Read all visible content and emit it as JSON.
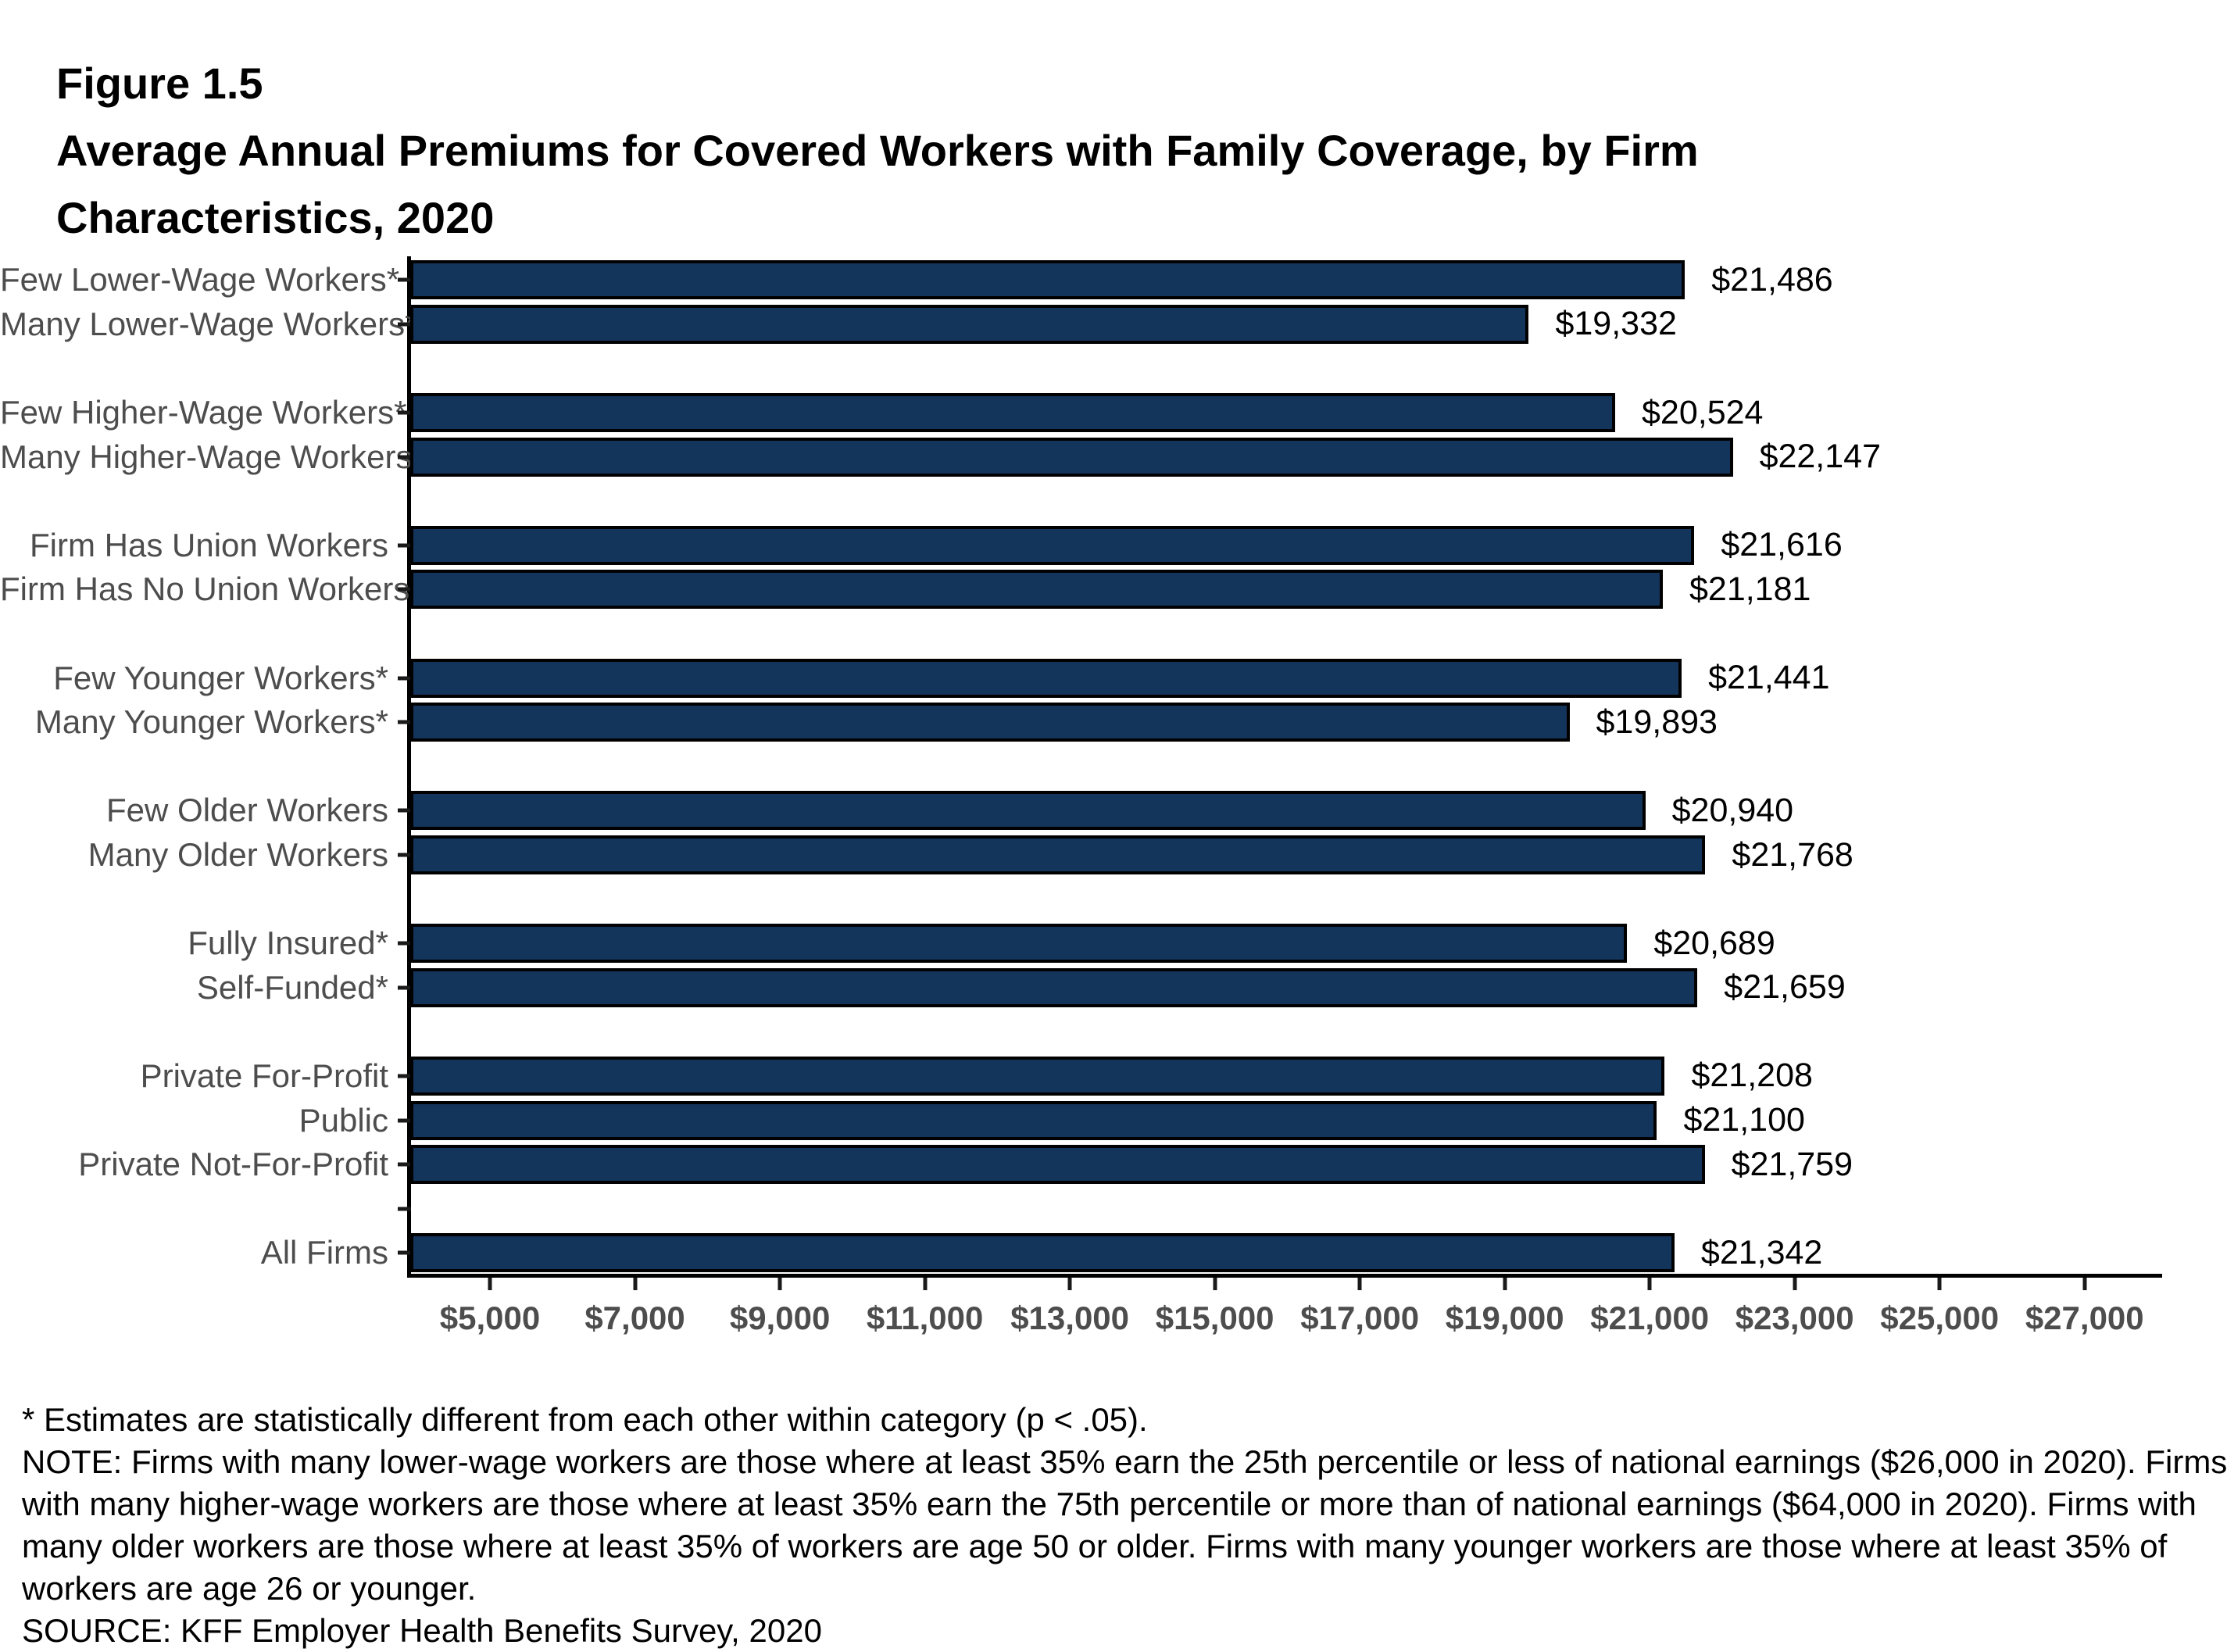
{
  "figure": {
    "number": "Figure 1.5",
    "title_line1": "Average Annual Premiums for Covered Workers with Family Coverage, by Firm",
    "title_line2": "Characteristics, 2020"
  },
  "chart_data": {
    "type": "bar",
    "orientation": "horizontal",
    "title": "Average Annual Premiums for Covered Workers with Family Coverage, by Firm Characteristics, 2020",
    "categories": [
      "Few Lower-Wage Workers*",
      "Many Lower-Wage Workers*",
      "Few Higher-Wage Workers*",
      "Many Higher-Wage Workers*",
      "Firm Has Union Workers",
      "Firm Has No Union Workers",
      "Few Younger Workers*",
      "Many Younger Workers*",
      "Few Older Workers",
      "Many Older Workers",
      "Fully Insured*",
      "Self-Funded*",
      "Private For-Profit",
      "Public",
      "Private Not-For-Profit",
      "All Firms"
    ],
    "values": [
      21486,
      19332,
      20524,
      22147,
      21616,
      21181,
      21441,
      19893,
      20940,
      21768,
      20689,
      21659,
      21208,
      21100,
      21759,
      21342
    ],
    "data_labels": [
      "$21,486",
      "$19,332",
      "$20,524",
      "$22,147",
      "$21,616",
      "$21,181",
      "$21,441",
      "$19,893",
      "$20,940",
      "$21,768",
      "$20,689",
      "$21,659",
      "$21,208",
      "$21,100",
      "$21,759",
      "$21,342"
    ],
    "breaks_after": [
      1,
      3,
      5,
      7,
      9,
      11,
      14
    ],
    "break_with_tick": 14,
    "x_tick_values": [
      5000,
      7000,
      9000,
      11000,
      13000,
      15000,
      17000,
      19000,
      21000,
      23000,
      25000,
      27000
    ],
    "x_tick_labels": [
      "$5,000",
      "$7,000",
      "$9,000",
      "$11,000",
      "$13,000",
      "$15,000",
      "$17,000",
      "$19,000",
      "$21,000",
      "$23,000",
      "$25,000",
      "$27,000"
    ],
    "xlim": [
      3900,
      28070
    ],
    "xlabel": "",
    "ylabel": "",
    "grid": false,
    "legend": false,
    "bar_color": "#14355B",
    "bar_border_color": "#000000",
    "category_label_color": "#4D4D4D",
    "value_label_color": "#000000"
  },
  "footnotes": {
    "asterisk_line": "* Estimates are statistically different from each other within category (p < .05).",
    "note_lines": [
      "NOTE: Firms with many lower-wage workers are those where at least 35% earn the 25th percentile or less of national earnings ($26,000 in 2020). Firms",
      "with many higher-wage workers are those where at least 35% earn the 75th percentile or more than of national earnings ($64,000 in 2020). Firms with",
      "many older workers are those where at least 35% of workers are age 50 or older. Firms with many younger workers are those where at least 35% of",
      "workers are age 26 or younger."
    ],
    "source_line": "SOURCE: KFF Employer Health Benefits Survey, 2020"
  }
}
